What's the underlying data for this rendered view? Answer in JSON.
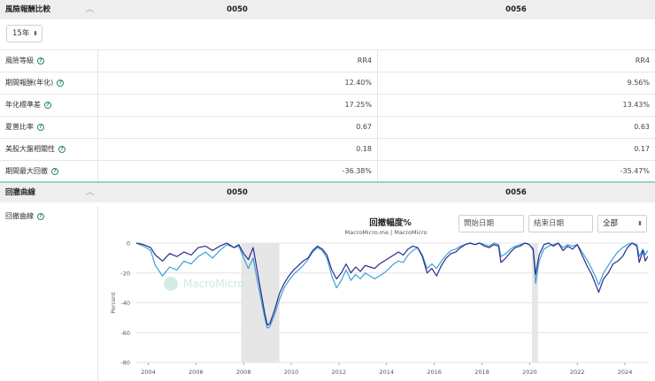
{
  "risk_section": {
    "title": "風險報酬比較",
    "caret": "︿",
    "col1": "0050",
    "col2": "0056",
    "period": "15年",
    "rows": [
      {
        "label": "風險等級",
        "v1": "RR4",
        "v2": "RR4"
      },
      {
        "label": "期間報酬(年化)",
        "v1": "12.40%",
        "v2": "9.56%"
      },
      {
        "label": "年化標準差",
        "v1": "17.25%",
        "v2": "13.43%"
      },
      {
        "label": "夏普比率",
        "v1": "0.67",
        "v2": "0.63"
      },
      {
        "label": "美股大盤相關性",
        "v1": "0.18",
        "v2": "0.17"
      },
      {
        "label": "期間最大回撤",
        "v1": "-36.38%",
        "v2": "-35.47%"
      }
    ]
  },
  "drawdown_section": {
    "title": "回撤曲線",
    "caret": "︿",
    "col1": "0050",
    "col2": "0056",
    "row_label": "回撤曲線"
  },
  "chart_controls": {
    "start_placeholder": "開始日期",
    "end_placeholder": "結束日期",
    "range_selected": "全部"
  },
  "colors": {
    "series_0050": "#2b2b8c",
    "series_0056": "#3aa0dc",
    "shade": "#e6e6e6",
    "divider": "#9bd3c4",
    "help_icon": "#2e8b57"
  },
  "chart_data": {
    "type": "line",
    "title": "回撤幅度%",
    "subtitle": "MacroMicro.me | MacroMicro",
    "watermark": "MacroMicro",
    "ylabel": "Percent",
    "xlabel": "",
    "ylim": [
      -80,
      0
    ],
    "y_ticks": [
      0,
      -20,
      -40,
      -60,
      -80
    ],
    "xlim": [
      2003.5,
      2025.0
    ],
    "x_ticks": [
      2004,
      2006,
      2008,
      2010,
      2012,
      2014,
      2016,
      2018,
      2020,
      2022,
      2024
    ],
    "shaded_periods": [
      [
        2007.9,
        2009.5
      ],
      [
        2020.1,
        2020.35
      ]
    ],
    "series": [
      {
        "name": "0050",
        "points": [
          [
            2003.5,
            0
          ],
          [
            2003.8,
            -1
          ],
          [
            2004.1,
            -3
          ],
          [
            2004.3,
            -8
          ],
          [
            2004.6,
            -12
          ],
          [
            2004.9,
            -7
          ],
          [
            2005.2,
            -9
          ],
          [
            2005.5,
            -6
          ],
          [
            2005.8,
            -8
          ],
          [
            2006.1,
            -3
          ],
          [
            2006.4,
            -2
          ],
          [
            2006.7,
            -5
          ],
          [
            2007.0,
            -2
          ],
          [
            2007.3,
            0
          ],
          [
            2007.6,
            -3
          ],
          [
            2007.8,
            -1
          ],
          [
            2008.0,
            -7
          ],
          [
            2008.2,
            -11
          ],
          [
            2008.4,
            -3
          ],
          [
            2008.5,
            -12
          ],
          [
            2008.7,
            -30
          ],
          [
            2008.9,
            -48
          ],
          [
            2009.0,
            -55
          ],
          [
            2009.1,
            -54
          ],
          [
            2009.3,
            -45
          ],
          [
            2009.5,
            -34
          ],
          [
            2009.7,
            -27
          ],
          [
            2009.9,
            -22
          ],
          [
            2010.1,
            -18
          ],
          [
            2010.3,
            -15
          ],
          [
            2010.5,
            -12
          ],
          [
            2010.7,
            -10
          ],
          [
            2010.9,
            -5
          ],
          [
            2011.1,
            -2
          ],
          [
            2011.3,
            -4
          ],
          [
            2011.5,
            -8
          ],
          [
            2011.7,
            -18
          ],
          [
            2011.9,
            -24
          ],
          [
            2012.1,
            -20
          ],
          [
            2012.3,
            -14
          ],
          [
            2012.5,
            -20
          ],
          [
            2012.7,
            -16
          ],
          [
            2012.9,
            -19
          ],
          [
            2013.1,
            -15
          ],
          [
            2013.3,
            -16
          ],
          [
            2013.5,
            -17
          ],
          [
            2013.7,
            -14
          ],
          [
            2013.9,
            -12
          ],
          [
            2014.1,
            -10
          ],
          [
            2014.3,
            -8
          ],
          [
            2014.5,
            -6
          ],
          [
            2014.7,
            -8
          ],
          [
            2014.9,
            -4
          ],
          [
            2015.1,
            -2
          ],
          [
            2015.3,
            -3
          ],
          [
            2015.5,
            -9
          ],
          [
            2015.7,
            -20
          ],
          [
            2015.9,
            -17
          ],
          [
            2016.1,
            -22
          ],
          [
            2016.3,
            -15
          ],
          [
            2016.5,
            -10
          ],
          [
            2016.7,
            -7
          ],
          [
            2016.9,
            -6
          ],
          [
            2017.1,
            -3
          ],
          [
            2017.3,
            -1
          ],
          [
            2017.5,
            0
          ],
          [
            2017.7,
            -1
          ],
          [
            2017.9,
            0
          ],
          [
            2018.1,
            -2
          ],
          [
            2018.3,
            -3
          ],
          [
            2018.5,
            -1
          ],
          [
            2018.7,
            -2
          ],
          [
            2018.8,
            -13
          ],
          [
            2019.0,
            -10
          ],
          [
            2019.2,
            -6
          ],
          [
            2019.4,
            -3
          ],
          [
            2019.6,
            -2
          ],
          [
            2019.8,
            0
          ],
          [
            2020.0,
            -1
          ],
          [
            2020.15,
            -4
          ],
          [
            2020.25,
            -21
          ],
          [
            2020.4,
            -8
          ],
          [
            2020.6,
            -1
          ],
          [
            2020.8,
            0
          ],
          [
            2021.0,
            -2
          ],
          [
            2021.2,
            0
          ],
          [
            2021.4,
            -5
          ],
          [
            2021.6,
            -2
          ],
          [
            2021.8,
            -4
          ],
          [
            2022.0,
            -1
          ],
          [
            2022.2,
            -8
          ],
          [
            2022.4,
            -15
          ],
          [
            2022.6,
            -21
          ],
          [
            2022.8,
            -29
          ],
          [
            2022.9,
            -33
          ],
          [
            2023.1,
            -24
          ],
          [
            2023.3,
            -20
          ],
          [
            2023.5,
            -14
          ],
          [
            2023.7,
            -12
          ],
          [
            2023.9,
            -9
          ],
          [
            2024.1,
            -3
          ],
          [
            2024.3,
            0
          ],
          [
            2024.5,
            -2
          ],
          [
            2024.6,
            -13
          ],
          [
            2024.75,
            -5
          ],
          [
            2024.85,
            -12
          ],
          [
            2024.95,
            -9
          ]
        ]
      },
      {
        "name": "0056",
        "points": [
          [
            2003.5,
            0
          ],
          [
            2003.8,
            -2
          ],
          [
            2004.1,
            -5
          ],
          [
            2004.3,
            -15
          ],
          [
            2004.6,
            -22
          ],
          [
            2004.9,
            -16
          ],
          [
            2005.2,
            -18
          ],
          [
            2005.5,
            -12
          ],
          [
            2005.8,
            -14
          ],
          [
            2006.1,
            -9
          ],
          [
            2006.4,
            -6
          ],
          [
            2006.7,
            -10
          ],
          [
            2007.0,
            -5
          ],
          [
            2007.3,
            -1
          ],
          [
            2007.6,
            -3
          ],
          [
            2007.8,
            -2
          ],
          [
            2008.0,
            -10
          ],
          [
            2008.2,
            -17
          ],
          [
            2008.4,
            -10
          ],
          [
            2008.5,
            -19
          ],
          [
            2008.7,
            -35
          ],
          [
            2008.9,
            -51
          ],
          [
            2009.0,
            -57
          ],
          [
            2009.1,
            -56
          ],
          [
            2009.3,
            -48
          ],
          [
            2009.5,
            -38
          ],
          [
            2009.7,
            -30
          ],
          [
            2009.9,
            -25
          ],
          [
            2010.1,
            -21
          ],
          [
            2010.3,
            -18
          ],
          [
            2010.5,
            -15
          ],
          [
            2010.7,
            -11
          ],
          [
            2010.9,
            -6
          ],
          [
            2011.1,
            -3
          ],
          [
            2011.3,
            -5
          ],
          [
            2011.5,
            -10
          ],
          [
            2011.7,
            -22
          ],
          [
            2011.9,
            -30
          ],
          [
            2012.1,
            -25
          ],
          [
            2012.3,
            -18
          ],
          [
            2012.5,
            -25
          ],
          [
            2012.7,
            -21
          ],
          [
            2012.9,
            -24
          ],
          [
            2013.1,
            -20
          ],
          [
            2013.3,
            -22
          ],
          [
            2013.5,
            -24
          ],
          [
            2013.7,
            -22
          ],
          [
            2013.9,
            -20
          ],
          [
            2014.1,
            -17
          ],
          [
            2014.3,
            -14
          ],
          [
            2014.5,
            -12
          ],
          [
            2014.7,
            -13
          ],
          [
            2014.9,
            -8
          ],
          [
            2015.1,
            -5
          ],
          [
            2015.3,
            -3
          ],
          [
            2015.5,
            -8
          ],
          [
            2015.7,
            -17
          ],
          [
            2015.9,
            -14
          ],
          [
            2016.1,
            -17
          ],
          [
            2016.3,
            -12
          ],
          [
            2016.5,
            -8
          ],
          [
            2016.7,
            -5
          ],
          [
            2016.9,
            -4
          ],
          [
            2017.1,
            -2
          ],
          [
            2017.3,
            -1
          ],
          [
            2017.5,
            0
          ],
          [
            2017.7,
            -1
          ],
          [
            2017.9,
            0
          ],
          [
            2018.1,
            -1
          ],
          [
            2018.3,
            -2
          ],
          [
            2018.5,
            0
          ],
          [
            2018.7,
            -1
          ],
          [
            2018.8,
            -9
          ],
          [
            2019.0,
            -7
          ],
          [
            2019.2,
            -4
          ],
          [
            2019.4,
            -2
          ],
          [
            2019.6,
            -1
          ],
          [
            2019.8,
            0
          ],
          [
            2020.0,
            -1
          ],
          [
            2020.15,
            -5
          ],
          [
            2020.25,
            -27
          ],
          [
            2020.4,
            -12
          ],
          [
            2020.6,
            -4
          ],
          [
            2020.8,
            -2
          ],
          [
            2021.0,
            -1
          ],
          [
            2021.2,
            0
          ],
          [
            2021.4,
            -3
          ],
          [
            2021.6,
            -1
          ],
          [
            2021.8,
            -2
          ],
          [
            2022.0,
            -1
          ],
          [
            2022.2,
            -6
          ],
          [
            2022.4,
            -11
          ],
          [
            2022.6,
            -17
          ],
          [
            2022.8,
            -24
          ],
          [
            2022.9,
            -28
          ],
          [
            2023.1,
            -20
          ],
          [
            2023.3,
            -15
          ],
          [
            2023.5,
            -10
          ],
          [
            2023.7,
            -6
          ],
          [
            2023.9,
            -3
          ],
          [
            2024.1,
            -1
          ],
          [
            2024.3,
            0
          ],
          [
            2024.5,
            -1
          ],
          [
            2024.6,
            -9
          ],
          [
            2024.75,
            -4
          ],
          [
            2024.85,
            -8
          ],
          [
            2024.95,
            -5
          ]
        ]
      }
    ]
  }
}
